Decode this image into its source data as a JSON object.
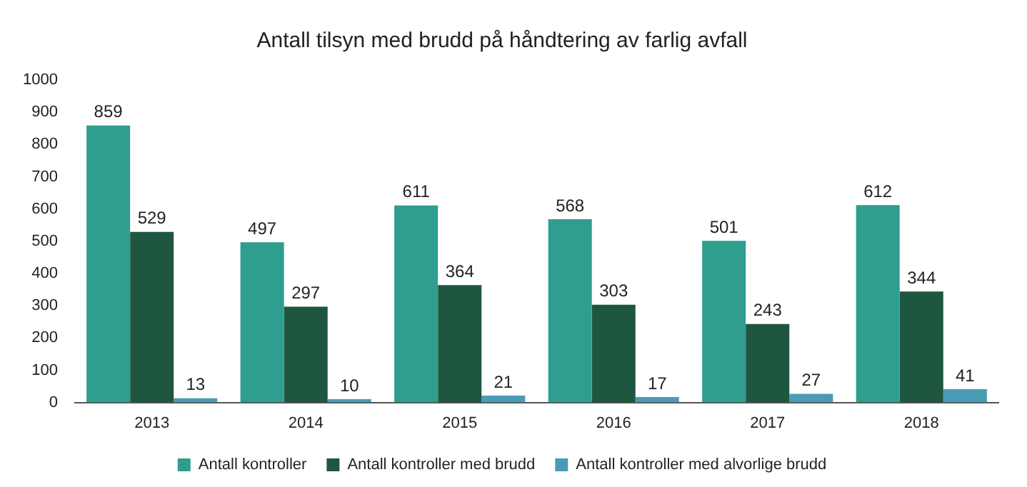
{
  "chart_data": {
    "type": "bar",
    "title": "Antall tilsyn med brudd på håndtering av farlig avfall",
    "categories": [
      "2013",
      "2014",
      "2015",
      "2016",
      "2017",
      "2018"
    ],
    "series": [
      {
        "name": "Antall kontroller",
        "color": "#2f9e8f",
        "values": [
          859,
          497,
          611,
          568,
          501,
          612
        ]
      },
      {
        "name": "Antall kontroller med brudd",
        "color": "#1f5640",
        "values": [
          529,
          297,
          364,
          303,
          243,
          344
        ]
      },
      {
        "name": "Antall kontroller med alvorlige brudd",
        "color": "#4a9bb5",
        "values": [
          13,
          10,
          21,
          17,
          27,
          41
        ]
      }
    ],
    "ylim": [
      0,
      1000
    ],
    "yticks": [
      0,
      100,
      200,
      300,
      400,
      500,
      600,
      700,
      800,
      900,
      1000
    ],
    "grid": false,
    "legend": "bottom",
    "data_labels": true
  }
}
